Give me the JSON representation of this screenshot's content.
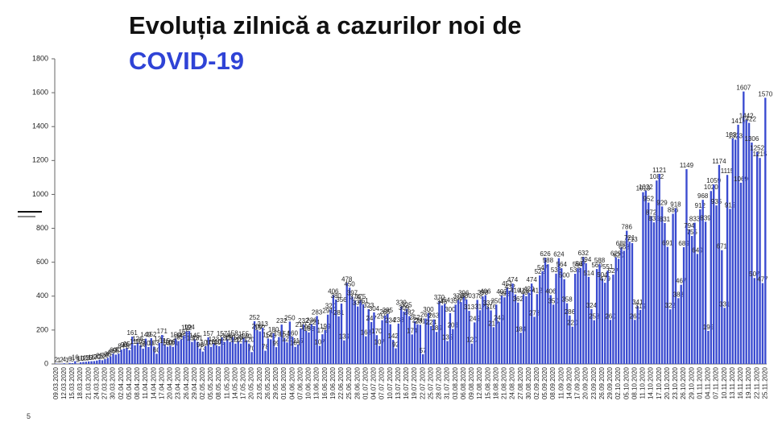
{
  "chart_data": {
    "type": "bar",
    "title": "Evoluția zilnică a cazurilor noi de",
    "subtitle": "COVID-19",
    "page_number": "5",
    "color": "#3a4bd0",
    "ylim": [
      0,
      1800
    ],
    "yticks": [
      0,
      200,
      400,
      600,
      800,
      1000,
      1200,
      1400,
      1600,
      1800
    ],
    "categories": [
      "09.03.2020",
      null,
      null,
      "12.03.2020",
      null,
      null,
      "15.03.2020",
      null,
      null,
      "18.03.2020",
      null,
      null,
      "21.03.2020",
      null,
      null,
      "24.03.2020",
      null,
      null,
      "27.03.2020",
      null,
      null,
      "30.03.2020",
      null,
      null,
      "02.04.2020",
      null,
      null,
      "05.04.2020",
      null,
      null,
      "08.04.2020",
      null,
      null,
      "11.04.2020",
      null,
      null,
      "14.04.2020",
      null,
      null,
      "17.04.2020",
      null,
      null,
      "20.04.2020",
      null,
      null,
      "23.04.2020",
      null,
      null,
      "26.04.2020",
      null,
      null,
      "29.04.2020",
      null,
      null,
      "02.05.2020",
      null,
      null,
      "05.05.2020",
      null,
      null,
      "08.05.2020",
      null,
      null,
      "11.05.2020",
      null,
      null,
      "14.05.2020",
      null,
      null,
      "17.05.2020",
      null,
      null,
      "20.05.2020",
      null,
      null,
      "23.05.2020",
      null,
      null,
      "26.05.2020",
      null,
      null,
      "29.05.2020",
      null,
      null,
      "01.06.2020",
      null,
      null,
      "04.06.2020",
      null,
      null,
      "07.06.2020",
      null,
      null,
      "10.06.2020",
      null,
      null,
      "13.06.2020",
      null,
      null,
      "16.06.2020",
      null,
      null,
      "19.06.2020",
      null,
      null,
      "22.06.2020",
      null,
      null,
      "25.06.2020",
      null,
      null,
      "28.06.2020",
      null,
      null,
      "01.07.2020",
      null,
      null,
      "04.07.2020",
      null,
      null,
      "07.07.2020",
      null,
      null,
      "10.07.2020",
      null,
      null,
      "13.07.2020",
      null,
      null,
      "16.07.2020",
      null,
      null,
      "19.07.2020",
      null,
      null,
      "22.07.2020",
      null,
      null,
      "25.07.2020",
      null,
      null,
      "28.07.2020",
      null,
      null,
      "31.07.2020",
      null,
      null,
      "03.08.2020",
      null,
      null,
      "06.08.2020",
      null,
      null,
      "09.08.2020",
      null,
      null,
      "12.08.2020",
      null,
      null,
      "15.08.2020",
      null,
      null,
      "18.08.2020",
      null,
      null,
      "21.08.2020",
      null,
      null,
      "24.08.2020",
      null,
      null,
      "27.08.2020",
      null,
      null,
      "30.08.2020",
      null,
      null,
      "02.09.2020",
      null,
      null,
      "05.09.2020",
      null,
      null,
      "08.09.2020",
      null,
      null,
      "11.09.2020",
      null,
      null,
      "14.09.2020",
      null,
      null,
      "17.09.2020",
      null,
      null,
      "20.09.2020",
      null,
      null,
      "23.09.2020",
      null,
      null,
      "26.09.2020",
      null,
      null,
      "29.09.2020",
      null,
      null,
      "02.10.2020",
      null,
      null,
      "05.10.2020",
      null,
      null,
      "08.10.2020",
      null,
      null,
      "11.10.2020",
      null,
      null,
      "14.10.2020",
      null,
      null,
      "17.10.2020",
      null,
      null,
      "20.10.2020",
      null,
      null,
      "23.10.2020",
      null,
      null,
      "26.10.2020",
      null,
      null,
      "29.10.2020",
      null,
      null,
      "01.11.2020",
      null,
      null,
      "04.11.2020",
      null,
      null,
      "07.11.2020",
      null,
      null,
      "10.11.2020",
      null,
      null,
      "13.11.2020",
      null,
      null,
      "16.11.2020",
      null,
      null,
      "19.11.2020",
      null,
      null,
      "22.11.2020",
      null,
      null,
      "25.11.2020"
    ],
    "values": [
      2,
      1,
      2,
      4,
      1,
      6,
      5,
      16,
      3,
      10,
      12,
      13,
      15,
      16,
      17,
      20,
      25,
      22,
      28,
      36,
      45,
      60,
      55,
      61,
      84,
      90,
      95,
      81,
      161,
      110,
      126,
      109,
      90,
      149,
      100,
      152,
      103,
      60,
      125,
      171,
      115,
      102,
      108,
      101,
      150,
      135,
      145,
      166,
      192,
      194,
      130,
      145,
      131,
      90,
      73,
      104,
      157,
      101,
      123,
      110,
      105,
      157,
      130,
      146,
      130,
      158,
      120,
      135,
      120,
      155,
      140,
      120,
      70,
      252,
      200,
      192,
      213,
      78,
      150,
      145,
      180,
      99,
      159,
      232,
      154,
      127,
      250,
      160,
      101,
      115,
      210,
      232,
      195,
      186,
      236,
      224,
      283,
      107,
      175,
      199,
      291,
      320,
      406,
      380,
      281,
      356,
      139,
      478,
      450,
      397,
      374,
      339,
      375,
      351,
      163,
      323,
      247,
      304,
      170,
      107,
      258,
      285,
      295,
      234,
      142,
      92,
      238,
      339,
      309,
      325,
      282,
      174,
      252,
      234,
      231,
      57,
      268,
      300,
      224,
      263,
      189,
      370,
      345,
      354,
      135,
      300,
      206,
      350,
      378,
      365,
      396,
      380,
      313,
      120,
      245,
      378,
      317,
      398,
      406,
      337,
      316,
      217,
      350,
      249,
      403,
      393,
      451,
      432,
      474,
      410,
      362,
      184,
      412,
      400,
      420,
      474,
      278,
      412,
      522,
      547,
      626,
      588,
      406,
      350,
      533,
      624,
      564,
      500,
      358,
      286,
      220,
      532,
      564,
      567,
      632,
      594,
      514,
      324,
      258,
      560,
      588,
      504,
      479,
      551,
      260,
      527,
      629,
      620,
      688,
      668,
      786,
      721,
      713,
      260,
      341,
      319,
      1013,
      1022,
      952,
      872,
      835,
      1082,
      1121,
      929,
      831,
      691,
      322,
      886,
      918,
      388,
      467,
      689,
      1149,
      794,
      755,
      833,
      649,
      912,
      968,
      839,
      195,
      1020,
      1059,
      935,
      1174,
      671,
      331,
      1115,
      915,
      1331,
      1323,
      1411,
      1069,
      1607,
      1442,
      1422,
      1306,
      507,
      1252,
      1215,
      477,
      1570
    ]
  }
}
